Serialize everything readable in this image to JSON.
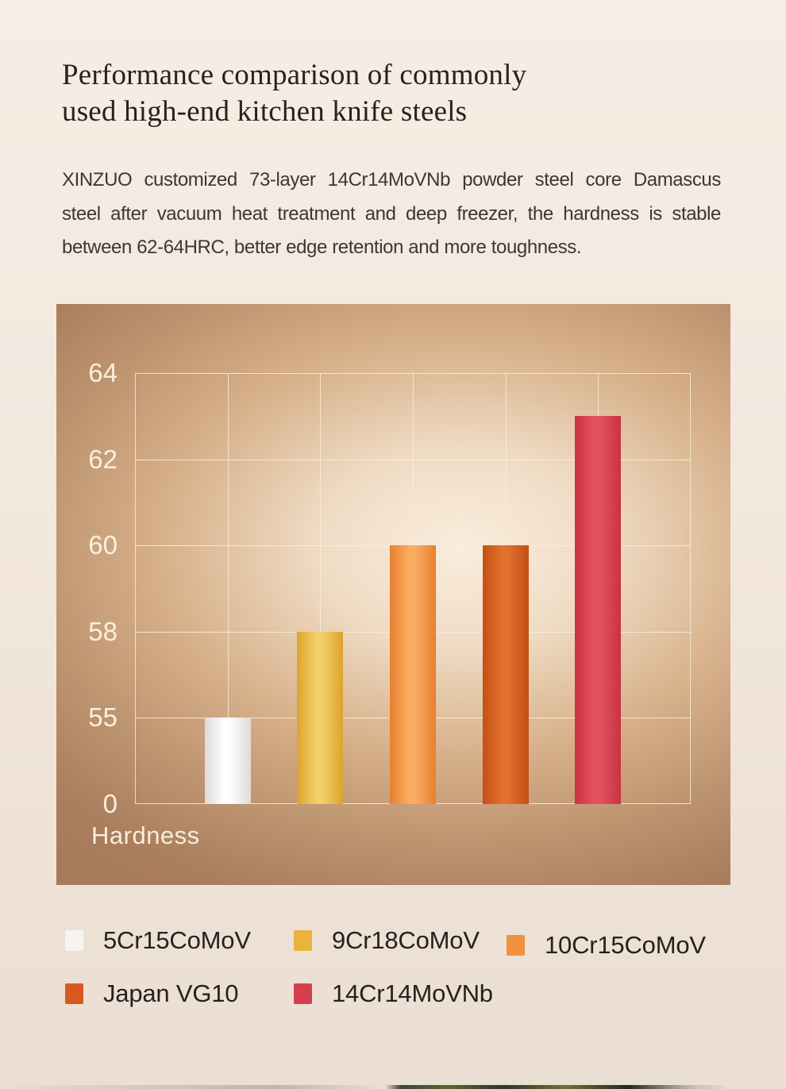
{
  "header": {
    "title_lines": [
      "Performance comparison of commonly",
      "used high-end kitchen knife steels"
    ],
    "description_lines": [
      "XINZUO customized 73-layer 14Cr14MoVNb powder steel core Damascus",
      "steel after vacuum heat treatment and deep freezer, the hardness is stable",
      "between 62-64HRC, better edge retention and more toughness."
    ]
  },
  "chart_data": {
    "type": "bar",
    "title": "",
    "categories": [
      "5Cr15CoMoV",
      "9Cr18CoMoV",
      "10Cr15CoMoV",
      "Japan VG10",
      "14Cr14MoVNb"
    ],
    "values": [
      55,
      58,
      60,
      60,
      63
    ],
    "ylabel": "Hardness",
    "xlabel": "",
    "yticks": [
      0,
      55,
      58,
      60,
      62,
      64
    ],
    "ytick_scale": "equal-spacing",
    "grid": true,
    "grid_columns": 6,
    "legend_position": "bottom",
    "bar_colors": [
      {
        "edge": "#dedbd7",
        "mid": "#ffffff"
      },
      {
        "edge": "#dda32c",
        "mid": "#f3d069"
      },
      {
        "edge": "#e8802f",
        "mid": "#fbac62"
      },
      {
        "edge": "#c44f14",
        "mid": "#e2702e"
      },
      {
        "edge": "#c93341",
        "mid": "#e35260"
      }
    ],
    "panel_colors": {
      "glow_center": "#f9eddc",
      "base_brown": "#a2785a",
      "gridline": "#faeedb",
      "tick_text": "#f9f0de"
    }
  },
  "legend": {
    "items": [
      {
        "label": "5Cr15CoMoV",
        "color": "#f7f5f2"
      },
      {
        "label": "9Cr18CoMoV",
        "color": "#eab43c"
      },
      {
        "label": "10Cr15CoMoV",
        "color": "#f0913e"
      },
      {
        "label": "Japan VG10",
        "color": "#d8591f"
      },
      {
        "label": "14Cr14MoVNb",
        "color": "#d43f50"
      }
    ]
  }
}
